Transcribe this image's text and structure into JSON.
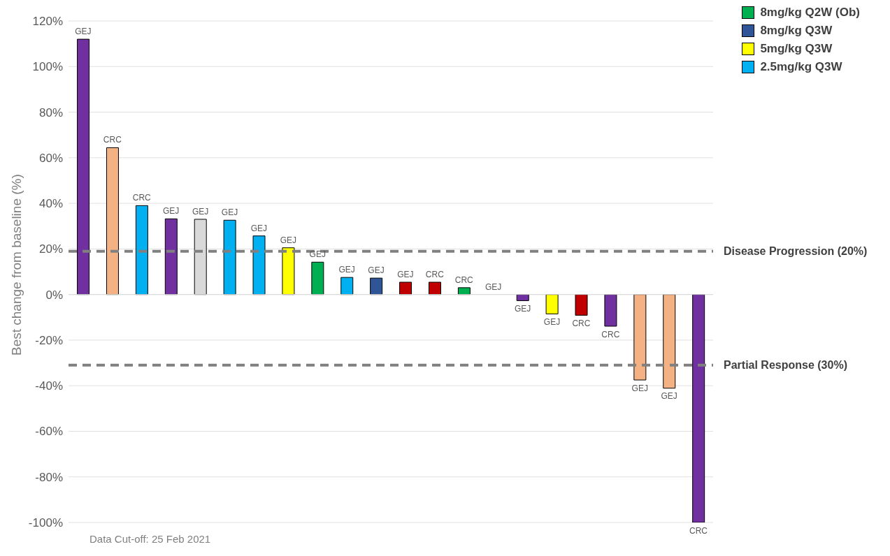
{
  "chart_data": {
    "type": "bar",
    "stacked": true,
    "ylabel": "Best change from baseline (%)",
    "categories": [
      null,
      null,
      null,
      null,
      null,
      null,
      null,
      null,
      null,
      null,
      null,
      null,
      null,
      null,
      null,
      null,
      null,
      null,
      null,
      null,
      null,
      null
    ],
    "series": [
      {
        "name": "8mg/kg Q2W (Ob)",
        "color": "#00b050",
        "values": [
          null,
          null,
          null,
          null,
          null,
          null,
          null,
          null,
          14.2,
          null,
          null,
          null,
          null,
          3,
          null,
          null,
          null,
          null,
          null,
          null,
          null,
          null
        ],
        "value_labels": [
          null,
          null,
          null,
          null,
          null,
          null,
          null,
          null,
          "GEJ",
          null,
          null,
          null,
          null,
          "CRC",
          null,
          null,
          null,
          null,
          null,
          null,
          null,
          null
        ]
      },
      {
        "name": "8mg/kg Q3W",
        "color": "#2f5597",
        "values": [
          null,
          null,
          null,
          null,
          null,
          null,
          null,
          null,
          null,
          null,
          7.2,
          null,
          null,
          null,
          null,
          null,
          null,
          null,
          null,
          null,
          null,
          null
        ],
        "value_labels": [
          null,
          null,
          null,
          null,
          null,
          null,
          null,
          null,
          null,
          null,
          "GEJ",
          null,
          null,
          null,
          null,
          null,
          null,
          null,
          null,
          null,
          null,
          null
        ]
      },
      {
        "name": "5mg/kg Q3W",
        "color": "#ffff00",
        "values": [
          null,
          null,
          null,
          null,
          null,
          null,
          null,
          20.5,
          null,
          null,
          null,
          null,
          null,
          null,
          null,
          null,
          -8.5,
          null,
          null,
          null,
          null,
          null
        ],
        "value_labels": [
          null,
          null,
          null,
          null,
          null,
          null,
          null,
          "GEJ",
          null,
          null,
          null,
          null,
          null,
          null,
          null,
          null,
          "GEJ",
          null,
          null,
          null,
          null,
          null
        ]
      },
      {
        "name": "2.5mg/kg Q3W",
        "color": "#00b0f0",
        "values": [
          null,
          null,
          39,
          null,
          null,
          32.6,
          25.7,
          null,
          null,
          7.5,
          null,
          null,
          null,
          null,
          null,
          null,
          null,
          null,
          null,
          null,
          null,
          null
        ],
        "value_labels": [
          null,
          null,
          "CRC",
          null,
          null,
          "GEJ",
          "GEJ",
          null,
          null,
          "GEJ",
          null,
          null,
          null,
          null,
          null,
          null,
          null,
          null,
          null,
          null,
          null,
          null
        ]
      },
      {
        "color": "#7030a0",
        "values": [
          112,
          null,
          null,
          33.2,
          null,
          null,
          null,
          null,
          null,
          null,
          null,
          null,
          null,
          null,
          null,
          -2.7,
          null,
          null,
          -13.9,
          null,
          null,
          -100
        ],
        "value_labels": [
          "GEJ",
          null,
          null,
          "GEJ",
          null,
          null,
          null,
          null,
          null,
          null,
          null,
          null,
          null,
          null,
          null,
          "GEJ",
          null,
          null,
          "CRC",
          null,
          null,
          "CRC"
        ]
      },
      {
        "color": "#f4b183",
        "values": [
          null,
          64.4,
          null,
          null,
          null,
          null,
          null,
          null,
          null,
          null,
          null,
          null,
          null,
          null,
          null,
          null,
          null,
          null,
          null,
          -37.5,
          -41.1,
          null
        ],
        "value_labels": [
          null,
          "CRC",
          null,
          null,
          null,
          null,
          null,
          null,
          null,
          null,
          null,
          null,
          null,
          null,
          null,
          null,
          null,
          null,
          null,
          "GEJ",
          "GEJ",
          null
        ]
      },
      {
        "color": "#d9d9d9",
        "values": [
          null,
          null,
          null,
          null,
          33,
          null,
          null,
          null,
          null,
          null,
          null,
          null,
          null,
          null,
          0,
          null,
          null,
          null,
          null,
          null,
          null,
          null
        ],
        "value_labels": [
          null,
          null,
          null,
          null,
          "GEJ",
          null,
          null,
          null,
          null,
          null,
          null,
          null,
          null,
          null,
          "GEJ",
          null,
          null,
          null,
          null,
          null,
          null,
          null
        ]
      },
      {
        "color": "#c00000",
        "values": [
          null,
          null,
          null,
          null,
          null,
          null,
          null,
          null,
          null,
          null,
          null,
          5.4,
          5.4,
          null,
          null,
          null,
          null,
          -9.1,
          null,
          null,
          null,
          null
        ],
        "value_labels": [
          null,
          null,
          null,
          null,
          null,
          null,
          null,
          null,
          null,
          null,
          null,
          "GEJ",
          "CRC",
          null,
          null,
          null,
          null,
          "CRC",
          null,
          null,
          null,
          null
        ]
      }
    ],
    "ylim": [
      -100,
      120
    ],
    "yticks": [
      {
        "value": -100,
        "label": "-100%"
      },
      {
        "value": -80,
        "label": "-80%"
      },
      {
        "value": -60,
        "label": "-60%"
      },
      {
        "value": -40,
        "label": "-40%"
      },
      {
        "value": -20,
        "label": "-20%"
      },
      {
        "value": 0,
        "label": "0%"
      },
      {
        "value": 20,
        "label": "20%"
      },
      {
        "value": 40,
        "label": "40%"
      },
      {
        "value": 60,
        "label": "60%"
      },
      {
        "value": 80,
        "label": "80%"
      },
      {
        "value": 100,
        "label": "100%"
      },
      {
        "value": 120,
        "label": "120%"
      }
    ],
    "grid": "y",
    "legend": "top right",
    "ref_lines": [
      {
        "axis": "y",
        "value": 19,
        "label": "Disease Progression (20%)",
        "color": "#808080",
        "line_style": "dashed"
      },
      {
        "axis": "y",
        "value": -31,
        "label": "Partial Response (30%)",
        "color": "#808080",
        "line_style": "dashed"
      }
    ],
    "annotations": [
      "Data Cut-off: 25 Feb 2021"
    ]
  }
}
